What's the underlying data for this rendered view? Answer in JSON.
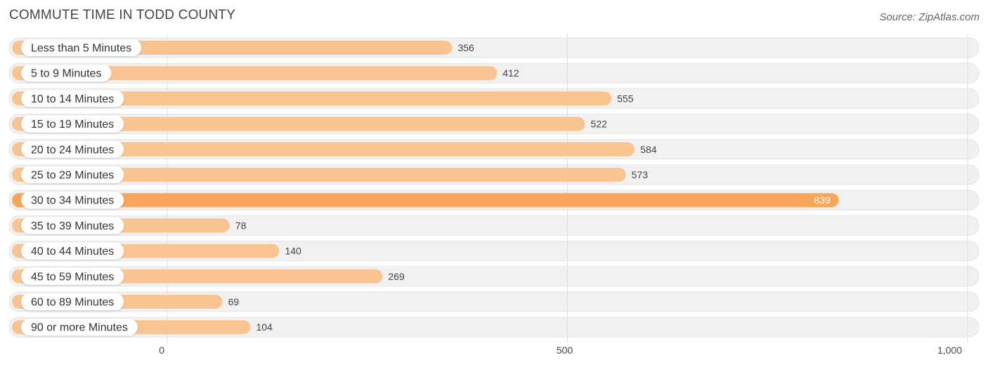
{
  "header": {
    "title": "COMMUTE TIME IN TODD COUNTY",
    "source": "Source: ZipAtlas.com"
  },
  "colors": {
    "bar_light": "#f9c490",
    "bar_highlight": "#f7a65a",
    "track": "#f1f1f1",
    "gridline": "#dddddd"
  },
  "chart_data": {
    "type": "bar",
    "orientation": "horizontal",
    "title": "COMMUTE TIME IN TODD COUNTY",
    "categories": [
      "Less than 5 Minutes",
      "5 to 9 Minutes",
      "10 to 14 Minutes",
      "15 to 19 Minutes",
      "20 to 24 Minutes",
      "25 to 29 Minutes",
      "30 to 34 Minutes",
      "35 to 39 Minutes",
      "40 to 44 Minutes",
      "45 to 59 Minutes",
      "60 to 89 Minutes",
      "90 or more Minutes"
    ],
    "values": [
      356,
      412,
      555,
      522,
      584,
      573,
      839,
      78,
      140,
      269,
      69,
      104
    ],
    "value_labels": [
      "356",
      "412",
      "555",
      "522",
      "584",
      "573",
      "839",
      "78",
      "140",
      "269",
      "69",
      "104"
    ],
    "highlight_index": 6,
    "xlim": [
      0,
      1000
    ],
    "ticks": [
      0,
      500,
      1000
    ],
    "tick_labels": [
      "0",
      "500",
      "1,000"
    ],
    "grid": true,
    "xlabel": "",
    "ylabel": ""
  }
}
